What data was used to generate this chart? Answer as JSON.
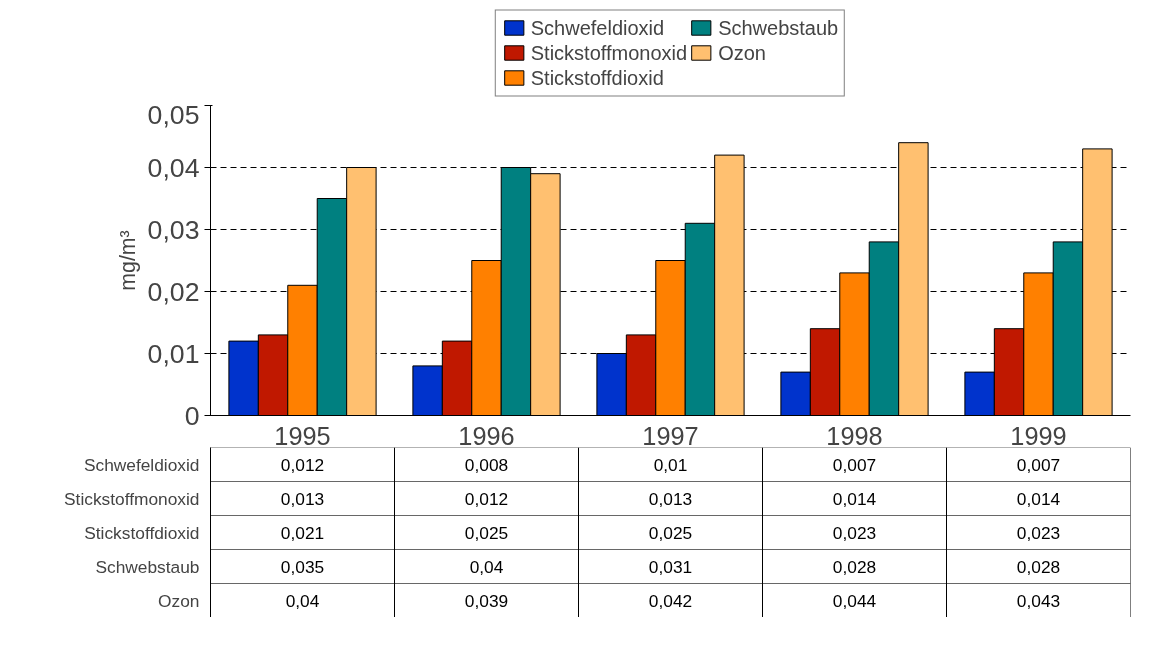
{
  "chart_data": {
    "type": "bar",
    "ylabel": "mg/m³",
    "categories": [
      "1995",
      "1996",
      "1997",
      "1998",
      "1999"
    ],
    "series": [
      {
        "name": "Schwefeldioxid",
        "color": "#0033cc",
        "values": [
          0.012,
          0.008,
          0.01,
          0.007,
          0.007
        ],
        "value_labels": [
          "0,012",
          "0,008",
          "0,01",
          "0,007",
          "0,007"
        ]
      },
      {
        "name": "Stickstoffmonoxid",
        "color": "#c01800",
        "values": [
          0.013,
          0.012,
          0.013,
          0.014,
          0.014
        ],
        "value_labels": [
          "0,013",
          "0,012",
          "0,013",
          "0,014",
          "0,014"
        ]
      },
      {
        "name": "Stickstoffdioxid",
        "color": "#ff8000",
        "values": [
          0.021,
          0.025,
          0.025,
          0.023,
          0.023
        ],
        "value_labels": [
          "0,021",
          "0,025",
          "0,025",
          "0,023",
          "0,023"
        ]
      },
      {
        "name": "Schwebstaub",
        "color": "#008080",
        "values": [
          0.035,
          0.04,
          0.031,
          0.028,
          0.028
        ],
        "value_labels": [
          "0,035",
          "0,04",
          "0,031",
          "0,028",
          "0,028"
        ]
      },
      {
        "name": "Ozon",
        "color": "#ffc070",
        "values": [
          0.04,
          0.039,
          0.042,
          0.044,
          0.043
        ],
        "value_labels": [
          "0,04",
          "0,039",
          "0,042",
          "0,044",
          "0,043"
        ]
      }
    ],
    "ylim": [
      0,
      0.05
    ],
    "yticks": [
      {
        "value": 0,
        "label": "0"
      },
      {
        "value": 0.01,
        "label": "0,01"
      },
      {
        "value": 0.02,
        "label": "0,02"
      },
      {
        "value": 0.03,
        "label": "0,03"
      },
      {
        "value": 0.04,
        "label": "0,04"
      },
      {
        "value": 0.05,
        "label": "0,05"
      }
    ],
    "grid": "y",
    "legend": "top"
  }
}
